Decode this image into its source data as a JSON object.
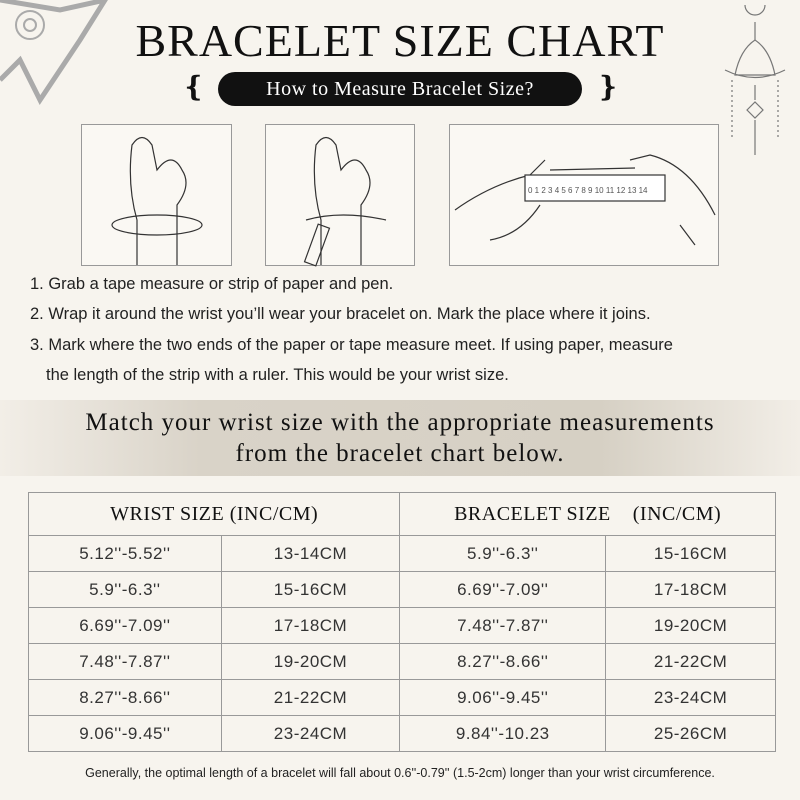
{
  "title": "BRACELET SIZE CHART",
  "subtitle": "How to Measure Bracelet Size?",
  "ruler_numbers": "0 1 2 3 4 5 6 7 8 9 10 11 12 13 14",
  "steps": [
    "1. Grab a tape measure or strip of paper and pen.",
    "2. Wrap it around the wrist you’ll wear your bracelet on. Mark the place where it joins.",
    "3. Mark where the two ends of the paper or tape measure meet. If using paper, measure",
    "the length of the strip with a ruler. This would be your wrist size."
  ],
  "band": {
    "line1": "Match your wrist size with the appropriate measurements",
    "line2": "from the bracelet chart below."
  },
  "table": {
    "headers": [
      "WRIST SIZE (INC/CM)",
      "BRACELET SIZE    (INC/CM)"
    ],
    "rows": [
      [
        "5.12''-5.52''",
        "13-14CM",
        "5.9''-6.3''",
        "15-16CM"
      ],
      [
        "5.9''-6.3''",
        "15-16CM",
        "6.69''-7.09''",
        "17-18CM"
      ],
      [
        "6.69''-7.09''",
        "17-18CM",
        "7.48''-7.87''",
        "19-20CM"
      ],
      [
        "7.48''-7.87''",
        "19-20CM",
        "8.27''-8.66''",
        "21-22CM"
      ],
      [
        "8.27''-8.66''",
        "21-22CM",
        "9.06''-9.45''",
        "23-24CM"
      ],
      [
        "9.06''-9.45''",
        "23-24CM",
        "9.84''-10.23",
        "25-26CM"
      ]
    ]
  },
  "footer": "Generally, the optimal length of a bracelet will fall about 0.6''-0.79'' (1.5-2cm) longer than your wrist circumference."
}
